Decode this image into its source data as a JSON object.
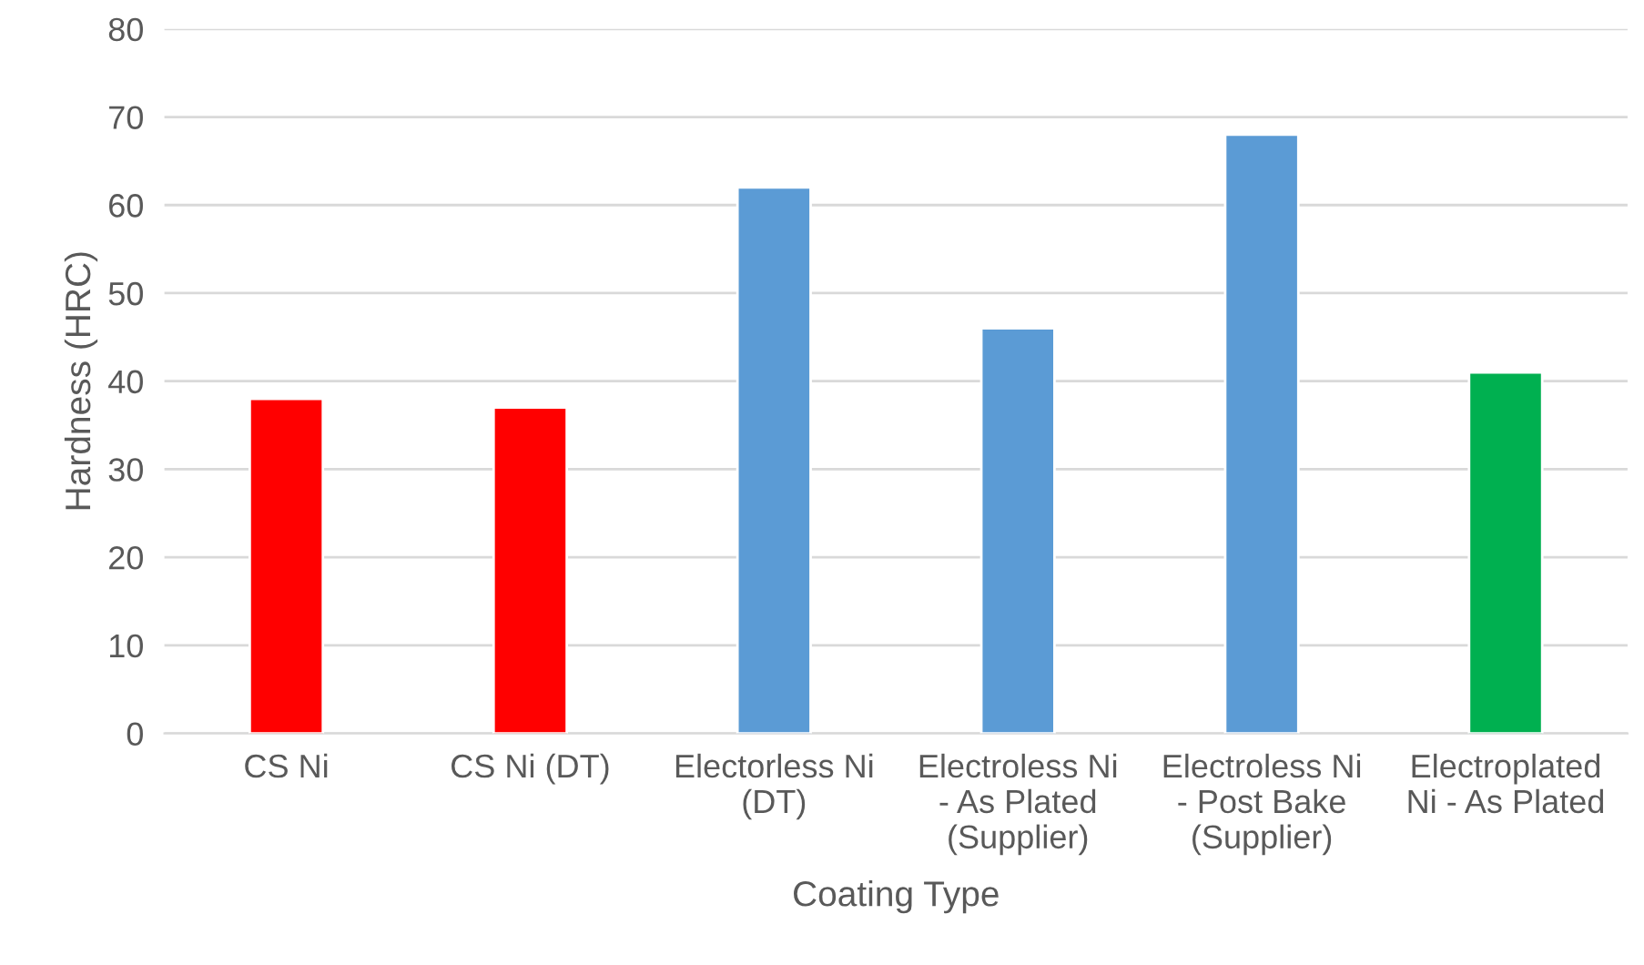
{
  "chart_data": {
    "type": "bar",
    "xlabel": "Coating Type",
    "ylabel": "Hardness (HRC)",
    "categories": [
      "CS Ni",
      "CS Ni (DT)",
      "Electorless Ni\n(DT)",
      "Electroless Ni\n- As Plated\n(Supplier)",
      "Electroless Ni\n- Post Bake\n(Supplier)",
      "Electroplated\nNi - As Plated"
    ],
    "values": [
      38,
      37,
      62,
      46,
      68,
      41
    ],
    "colors": [
      "#ff0000",
      "#ff0000",
      "#5b9bd5",
      "#5b9bd5",
      "#5b9bd5",
      "#00b050"
    ],
    "ylim": [
      0,
      80
    ],
    "yticks": [
      0,
      10,
      20,
      30,
      40,
      50,
      60,
      70,
      80
    ],
    "grid": "y"
  }
}
